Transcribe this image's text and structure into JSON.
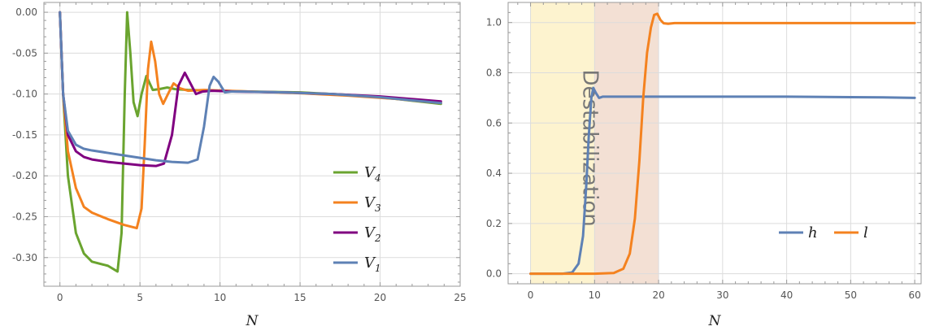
{
  "chart_data": [
    {
      "type": "line",
      "xlabel": "N",
      "ylabel": "",
      "xlim": [
        -1,
        25
      ],
      "ylim": [
        -0.335,
        0.012
      ],
      "xticks": [
        0,
        5,
        10,
        15,
        20,
        25
      ],
      "yticks": [
        0.0,
        -0.05,
        -0.1,
        -0.15,
        -0.2,
        -0.25,
        -0.3
      ],
      "xtick_labels": [
        "0",
        "5",
        "10",
        "15",
        "20",
        "25"
      ],
      "ytick_labels": [
        "0.00",
        "-0.05",
        "-0.10",
        "-0.15",
        "-0.20",
        "-0.25",
        "-0.30"
      ],
      "grid": true,
      "legend_position": "bottom-right",
      "series": [
        {
          "name": "V4",
          "label_main": "V",
          "label_sub": "4",
          "color": "#6aa42f",
          "points": [
            [
              0,
              0
            ],
            [
              0.2,
              -0.1
            ],
            [
              0.5,
              -0.2
            ],
            [
              1,
              -0.27
            ],
            [
              1.5,
              -0.295
            ],
            [
              2,
              -0.305
            ],
            [
              3,
              -0.31
            ],
            [
              3.6,
              -0.317
            ],
            [
              3.85,
              -0.27
            ],
            [
              4.05,
              -0.1
            ],
            [
              4.2,
              0.0
            ],
            [
              4.4,
              -0.05
            ],
            [
              4.6,
              -0.11
            ],
            [
              4.85,
              -0.127
            ],
            [
              5.1,
              -0.1
            ],
            [
              5.4,
              -0.078
            ],
            [
              5.8,
              -0.095
            ],
            [
              6.2,
              -0.094
            ],
            [
              6.7,
              -0.092
            ],
            [
              7.2,
              -0.094
            ],
            [
              8,
              -0.095
            ],
            [
              10,
              -0.096
            ],
            [
              12,
              -0.097
            ],
            [
              15,
              -0.098
            ],
            [
              18,
              -0.101
            ],
            [
              21,
              -0.106
            ],
            [
              23.8,
              -0.112
            ]
          ]
        },
        {
          "name": "V3",
          "label_main": "V",
          "label_sub": "3",
          "color": "#f4821f",
          "points": [
            [
              0,
              0
            ],
            [
              0.2,
              -0.1
            ],
            [
              0.5,
              -0.17
            ],
            [
              1,
              -0.215
            ],
            [
              1.5,
              -0.238
            ],
            [
              2,
              -0.245
            ],
            [
              3,
              -0.253
            ],
            [
              4,
              -0.26
            ],
            [
              4.8,
              -0.264
            ],
            [
              5.1,
              -0.24
            ],
            [
              5.3,
              -0.16
            ],
            [
              5.5,
              -0.07
            ],
            [
              5.7,
              -0.036
            ],
            [
              5.95,
              -0.06
            ],
            [
              6.2,
              -0.1
            ],
            [
              6.45,
              -0.112
            ],
            [
              6.8,
              -0.098
            ],
            [
              7.1,
              -0.087
            ],
            [
              7.5,
              -0.093
            ],
            [
              8,
              -0.096
            ],
            [
              9,
              -0.095
            ],
            [
              12,
              -0.097
            ],
            [
              15,
              -0.099
            ],
            [
              18,
              -0.102
            ],
            [
              21,
              -0.106
            ],
            [
              23.8,
              -0.111
            ]
          ]
        },
        {
          "name": "V2",
          "label_main": "V",
          "label_sub": "2",
          "color": "#800080",
          "points": [
            [
              0,
              0
            ],
            [
              0.2,
              -0.1
            ],
            [
              0.5,
              -0.15
            ],
            [
              1,
              -0.17
            ],
            [
              1.5,
              -0.177
            ],
            [
              2,
              -0.18
            ],
            [
              3,
              -0.183
            ],
            [
              4,
              -0.185
            ],
            [
              5,
              -0.187
            ],
            [
              6,
              -0.188
            ],
            [
              6.5,
              -0.185
            ],
            [
              7.0,
              -0.15
            ],
            [
              7.4,
              -0.09
            ],
            [
              7.8,
              -0.074
            ],
            [
              8.1,
              -0.085
            ],
            [
              8.5,
              -0.1
            ],
            [
              8.9,
              -0.097
            ],
            [
              9.5,
              -0.096
            ],
            [
              11,
              -0.097
            ],
            [
              14,
              -0.098
            ],
            [
              17,
              -0.1
            ],
            [
              20,
              -0.103
            ],
            [
              23.8,
              -0.109
            ]
          ]
        },
        {
          "name": "V1",
          "label_main": "V",
          "label_sub": "1",
          "color": "#5e81b5",
          "points": [
            [
              0,
              0
            ],
            [
              0.2,
              -0.1
            ],
            [
              0.5,
              -0.145
            ],
            [
              1,
              -0.162
            ],
            [
              1.5,
              -0.167
            ],
            [
              2,
              -0.169
            ],
            [
              3,
              -0.172
            ],
            [
              4,
              -0.175
            ],
            [
              5,
              -0.178
            ],
            [
              6,
              -0.181
            ],
            [
              7,
              -0.183
            ],
            [
              8,
              -0.184
            ],
            [
              8.6,
              -0.18
            ],
            [
              9,
              -0.14
            ],
            [
              9.35,
              -0.09
            ],
            [
              9.6,
              -0.079
            ],
            [
              9.9,
              -0.085
            ],
            [
              10.3,
              -0.098
            ],
            [
              10.7,
              -0.097
            ],
            [
              11.5,
              -0.097
            ],
            [
              14,
              -0.098
            ],
            [
              17,
              -0.1
            ],
            [
              20,
              -0.104
            ],
            [
              23.8,
              -0.111
            ]
          ]
        }
      ]
    },
    {
      "type": "line",
      "xlabel": "N",
      "ylabel": "",
      "xlim": [
        -3.5,
        61
      ],
      "ylim": [
        -0.04,
        1.08
      ],
      "xticks": [
        0,
        10,
        20,
        30,
        40,
        50,
        60
      ],
      "yticks": [
        0.0,
        0.2,
        0.4,
        0.6,
        0.8,
        1.0
      ],
      "xtick_labels": [
        "0",
        "10",
        "20",
        "30",
        "40",
        "50",
        "60"
      ],
      "ytick_labels": [
        "0.0",
        "0.2",
        "0.4",
        "0.6",
        "0.8",
        "1.0"
      ],
      "grid": true,
      "legend_position": "bottom-right",
      "shaded_regions": [
        {
          "from": 0,
          "to": 10,
          "color": "#fdf3cf"
        },
        {
          "from": 10,
          "to": 20,
          "color": "#f3e0d4"
        }
      ],
      "annotation": "Destabilization",
      "series": [
        {
          "name": "h",
          "color": "#5e81b5",
          "points": [
            [
              0,
              0
            ],
            [
              5,
              0
            ],
            [
              6.5,
              0.005
            ],
            [
              7.5,
              0.04
            ],
            [
              8.2,
              0.15
            ],
            [
              8.7,
              0.35
            ],
            [
              9.1,
              0.55
            ],
            [
              9.5,
              0.7
            ],
            [
              9.8,
              0.74
            ],
            [
              10.2,
              0.72
            ],
            [
              10.7,
              0.7
            ],
            [
              11.3,
              0.705
            ],
            [
              12,
              0.705
            ],
            [
              20,
              0.705
            ],
            [
              30,
              0.705
            ],
            [
              40,
              0.705
            ],
            [
              50,
              0.703
            ],
            [
              55,
              0.702
            ],
            [
              60,
              0.7
            ]
          ]
        },
        {
          "name": "l",
          "color": "#f4821f",
          "points": [
            [
              0,
              0
            ],
            [
              10,
              0
            ],
            [
              13,
              0.003
            ],
            [
              14.5,
              0.02
            ],
            [
              15.5,
              0.08
            ],
            [
              16.3,
              0.22
            ],
            [
              17,
              0.45
            ],
            [
              17.6,
              0.7
            ],
            [
              18.2,
              0.88
            ],
            [
              18.8,
              0.98
            ],
            [
              19.3,
              1.03
            ],
            [
              19.8,
              1.035
            ],
            [
              20.3,
              1.01
            ],
            [
              20.8,
              0.997
            ],
            [
              21.5,
              0.995
            ],
            [
              22.5,
              0.998
            ],
            [
              30,
              0.998
            ],
            [
              40,
              0.998
            ],
            [
              50,
              0.998
            ],
            [
              60,
              0.998
            ]
          ]
        }
      ]
    }
  ]
}
